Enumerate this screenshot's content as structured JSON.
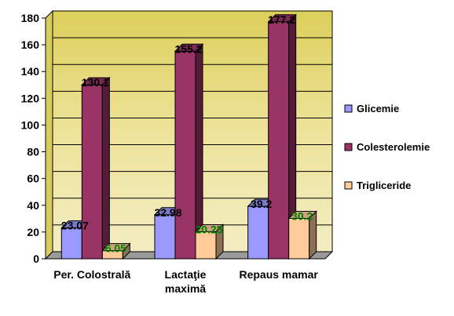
{
  "chart_data": {
    "type": "bar",
    "categories": [
      "Per. Colostrală",
      "Lactaţie\nmaximă",
      "Repaus mamar"
    ],
    "series": [
      {
        "name": "Glicemie",
        "values": [
          23.07,
          32.98,
          39.2
        ],
        "labels": [
          "23.07",
          "32.98",
          "39.2"
        ]
      },
      {
        "name": "Colesterolemie",
        "values": [
          130.1,
          155.2,
          177.2
        ],
        "labels": [
          "130.1",
          "155.2",
          "177.2"
        ]
      },
      {
        "name": "Trigliceride",
        "values": [
          6.05,
          20.25,
          30.2
        ],
        "labels": [
          "6.05",
          "20.25",
          "30.2"
        ]
      }
    ],
    "yticks": [
      "0",
      "20",
      "40",
      "60",
      "80",
      "100",
      "120",
      "140",
      "160",
      "180"
    ],
    "ylim": [
      0,
      180
    ],
    "title": "",
    "xlabel": "",
    "ylabel": "",
    "grid": true,
    "legend": "right",
    "colors": {
      "glicemie_front": "#9999FF",
      "colesterolemie_front": "#993366",
      "trigliceride_front": "#FFCC99",
      "plot_background": "#E8DC78",
      "trigliceride_label": "#008000"
    }
  }
}
